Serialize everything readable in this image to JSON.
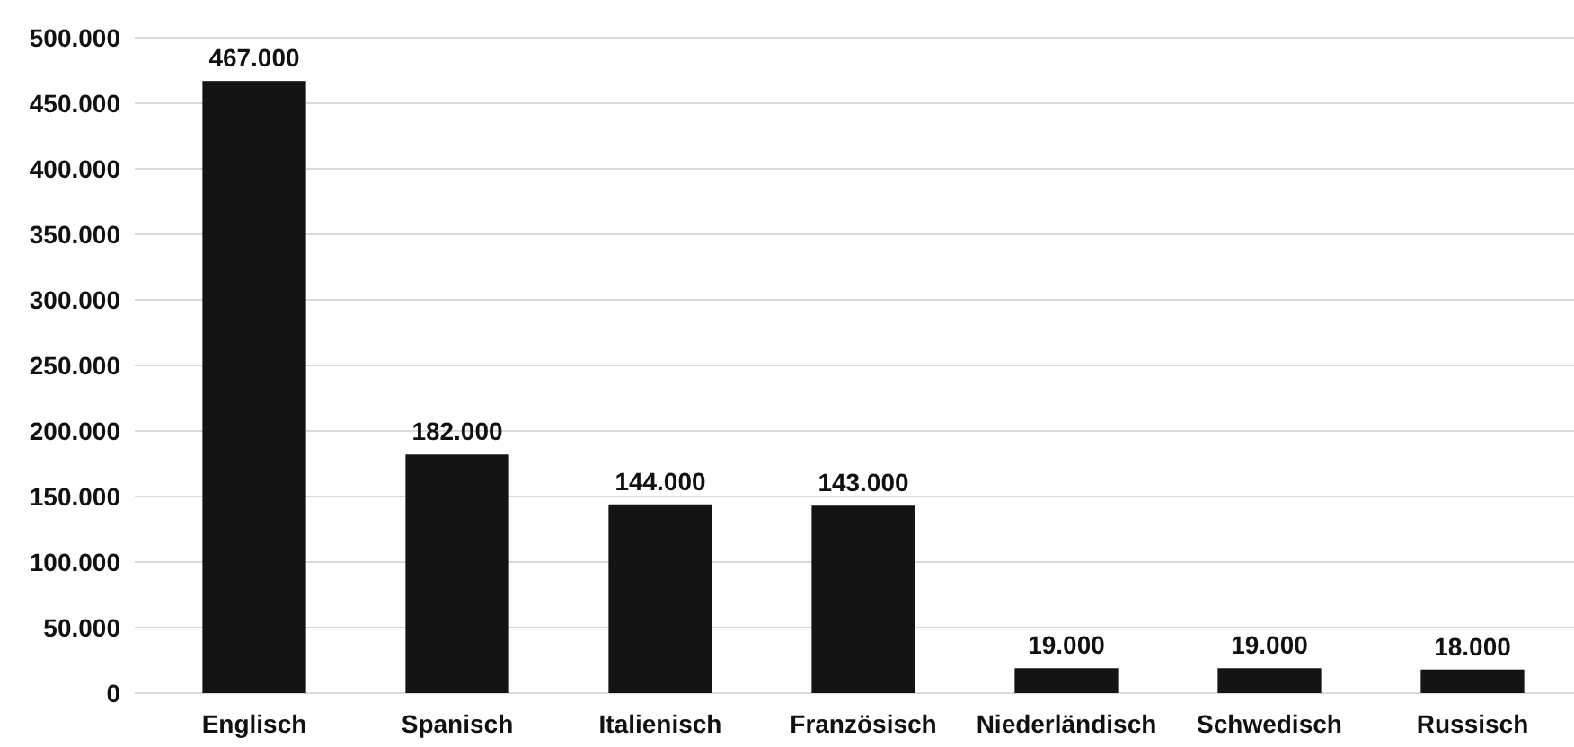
{
  "chart_data": {
    "type": "bar",
    "categories": [
      "Englisch",
      "Spanisch",
      "Italienisch",
      "Französisch",
      "Niederländisch",
      "Schwedisch",
      "Russisch"
    ],
    "values": [
      467000,
      182000,
      144000,
      143000,
      19000,
      19000,
      18000
    ],
    "value_labels": [
      "467.000",
      "182.000",
      "144.000",
      "143.000",
      "19.000",
      "19.000",
      "18.000"
    ],
    "color": "#141414",
    "ylim": [
      0,
      500000
    ],
    "yticks": [
      {
        "value": 0,
        "label": "0"
      },
      {
        "value": 50000,
        "label": "50.000"
      },
      {
        "value": 100000,
        "label": "100.000"
      },
      {
        "value": 150000,
        "label": "150.000"
      },
      {
        "value": 200000,
        "label": "200.000"
      },
      {
        "value": 250000,
        "label": "250.000"
      },
      {
        "value": 300000,
        "label": "300.000"
      },
      {
        "value": 350000,
        "label": "350.000"
      },
      {
        "value": 400000,
        "label": "400.000"
      },
      {
        "value": 450000,
        "label": "450.000"
      },
      {
        "value": 500000,
        "label": "500.000"
      }
    ],
    "grid": "y"
  }
}
